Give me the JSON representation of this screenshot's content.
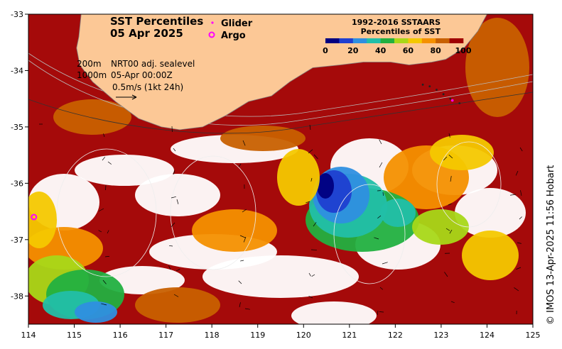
{
  "title": {
    "line1": "SST Percentiles",
    "line2": "05 Apr 2025"
  },
  "legend": {
    "glider_label": "Glider",
    "glider_color": "#ff00ff",
    "argo_label": "Argo",
    "argo_color": "#ff00ff"
  },
  "colorbar": {
    "title_line1": "1992-2016 SSTAARS",
    "title_line2": "Percentiles of SST",
    "ticks": [
      "0",
      "20",
      "40",
      "60",
      "80",
      "100"
    ],
    "colors": [
      "#000080",
      "#1f3fd0",
      "#2f8fe0",
      "#22bfa8",
      "#22b040",
      "#a8d818",
      "#f4c800",
      "#f49000",
      "#c86000",
      "#a00000"
    ]
  },
  "annotation": {
    "contour_label_200": "200m",
    "contour_label_1000": "1000m",
    "sealevel_source": "NRT00 adj. sealevel",
    "sealevel_time": "05-Apr 00:00Z",
    "current_scale": "0.5m/s (1kt 24h)"
  },
  "credit": "© IMOS 13-Apr-2025 11:56 Hobart",
  "land_color": "#fcc896",
  "map_data": {
    "lon_range": [
      114,
      125
    ],
    "lat_range": [
      -38.5,
      -33
    ],
    "lon_ticks": [
      "114",
      "115",
      "116",
      "117",
      "118",
      "119",
      "120",
      "121",
      "122",
      "123",
      "124",
      "125"
    ],
    "lat_ticks": [
      "-33",
      "-34",
      "-35",
      "-36",
      "-37",
      "-38"
    ],
    "argo": [
      {
        "lon": 114.12,
        "lat": -36.6
      }
    ],
    "glider_track": [
      {
        "lon": 122.6,
        "lat": -34.25
      },
      {
        "lon": 122.75,
        "lat": -34.28
      },
      {
        "lon": 122.9,
        "lat": -34.34
      },
      {
        "lon": 123.05,
        "lat": -34.42
      },
      {
        "lon": 123.2,
        "lat": -34.5
      },
      {
        "lon": 123.4,
        "lat": -34.58
      }
    ],
    "coastline": [
      {
        "lon": 115.15,
        "lat": -33
      },
      {
        "lon": 115.1,
        "lat": -33.4
      },
      {
        "lon": 115.05,
        "lat": -33.6
      },
      {
        "lon": 115.12,
        "lat": -33.9
      },
      {
        "lon": 115.4,
        "lat": -34.2
      },
      {
        "lon": 115.9,
        "lat": -34.55
      },
      {
        "lon": 116.4,
        "lat": -34.85
      },
      {
        "lon": 116.9,
        "lat": -35.0
      },
      {
        "lon": 117.3,
        "lat": -35.05
      },
      {
        "lon": 117.8,
        "lat": -35.0
      },
      {
        "lon": 118.3,
        "lat": -34.8
      },
      {
        "lon": 118.8,
        "lat": -34.55
      },
      {
        "lon": 119.3,
        "lat": -34.45
      },
      {
        "lon": 119.7,
        "lat": -34.2
      },
      {
        "lon": 120.2,
        "lat": -33.95
      },
      {
        "lon": 120.8,
        "lat": -33.9
      },
      {
        "lon": 121.3,
        "lat": -33.85
      },
      {
        "lon": 121.9,
        "lat": -33.85
      },
      {
        "lon": 122.3,
        "lat": -33.9
      },
      {
        "lon": 122.8,
        "lat": -33.85
      },
      {
        "lon": 123.1,
        "lat": -33.8
      },
      {
        "lon": 123.5,
        "lat": -33.6
      },
      {
        "lon": 123.8,
        "lat": -33.3
      },
      {
        "lon": 124.0,
        "lat": -33.0
      }
    ]
  }
}
